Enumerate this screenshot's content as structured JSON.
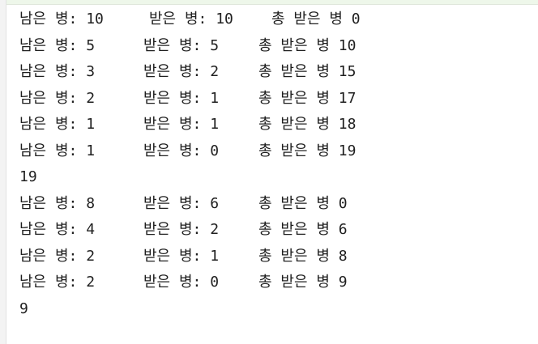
{
  "console": {
    "lines": [
      {
        "type": "row",
        "remaining": "남은 병: 10",
        "received": "받은 병: 10",
        "total": "총 받은 병 0"
      },
      {
        "type": "row",
        "remaining": "남은 병: 5",
        "received": "받은 병: 5",
        "total": "총 받은 병 10"
      },
      {
        "type": "row",
        "remaining": "남은 병: 3",
        "received": "받은 병: 2",
        "total": "총 받은 병 15"
      },
      {
        "type": "row",
        "remaining": "남은 병: 2",
        "received": "받은 병: 1",
        "total": "총 받은 병 17"
      },
      {
        "type": "row",
        "remaining": "남은 병: 1",
        "received": "받은 병: 1",
        "total": "총 받은 병 18"
      },
      {
        "type": "row",
        "remaining": "남은 병: 1",
        "received": "받은 병: 0",
        "total": "총 받은 병 19"
      },
      {
        "type": "result",
        "text": "19"
      },
      {
        "type": "row",
        "remaining": "남은 병: 8",
        "received": "받은 병: 6",
        "total": "총 받은 병 0"
      },
      {
        "type": "row",
        "remaining": "남은 병: 4",
        "received": "받은 병: 2",
        "total": "총 받은 병 6"
      },
      {
        "type": "row",
        "remaining": "남은 병: 2",
        "received": "받은 병: 1",
        "total": "총 받은 병 8"
      },
      {
        "type": "row",
        "remaining": "남은 병: 2",
        "received": "받은 병: 0",
        "total": "총 받은 병 9"
      },
      {
        "type": "result",
        "text": "9"
      }
    ]
  }
}
